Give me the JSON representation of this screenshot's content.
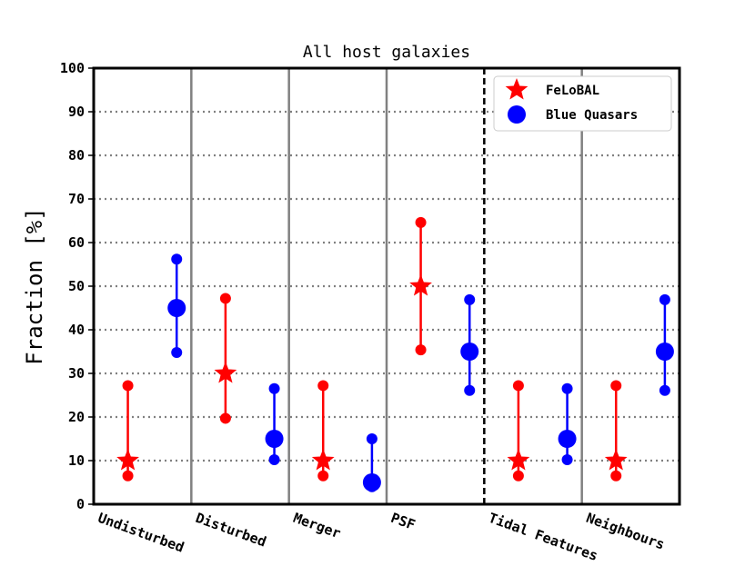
{
  "chart_data": {
    "type": "scatter",
    "title": "All host galaxies",
    "xlabel": "",
    "ylabel": "Fraction [%]",
    "ylim": [
      0,
      100
    ],
    "yticks": [
      0,
      10,
      20,
      30,
      40,
      50,
      60,
      70,
      80,
      90,
      100
    ],
    "grid": "horizontal dotted",
    "categories": [
      "Undisturbed",
      "Disturbed",
      "Merger",
      "PSF",
      "Tidal Features",
      "Neighbours"
    ],
    "legend_position": "upper-right",
    "series": [
      {
        "name": "FeLoBAL",
        "color": "#ff0000",
        "marker": "star",
        "values": [
          10,
          30,
          10,
          50,
          10,
          10
        ],
        "lower": [
          6.5,
          19.7,
          6.5,
          35.4,
          6.5,
          6.5
        ],
        "upper": [
          27.2,
          47.2,
          27.2,
          64.6,
          27.2,
          27.2
        ]
      },
      {
        "name": "Blue Quasars",
        "color": "#0000ff",
        "marker": "circle",
        "values": [
          45,
          15,
          5,
          35,
          15,
          35
        ],
        "lower": [
          34.8,
          10.2,
          4.0,
          26.1,
          10.2,
          26.1
        ],
        "upper": [
          56.2,
          26.5,
          15.0,
          46.9,
          26.5,
          46.9
        ]
      }
    ]
  }
}
